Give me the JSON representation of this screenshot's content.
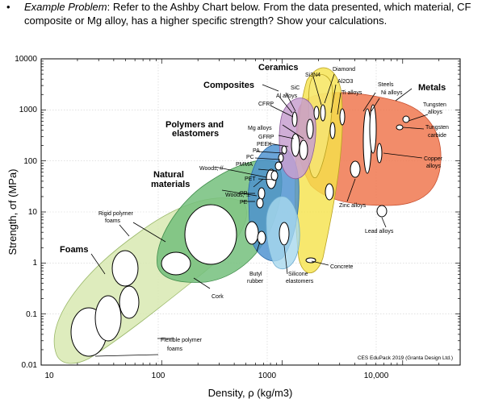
{
  "problem": {
    "bullet": "•",
    "label": "Example Problem",
    "text": ": Refer to the Ashby Chart below. From the data presented, which material, CF composite or Mg alloy, has a higher specific strength? Show your calculations."
  },
  "chart_data": {
    "type": "scatter",
    "subtype": "ashby-bubble-chart",
    "xlabel": "Density, ρ (kg/m3)",
    "ylabel": "Strength, σf (MPa)",
    "x_scale": "log",
    "y_scale": "log",
    "xlim": [
      10,
      30000
    ],
    "ylim": [
      0.01,
      10000
    ],
    "x_ticks": [
      "10",
      "100",
      "1000",
      "10,000"
    ],
    "y_ticks": [
      "10000",
      "1000",
      "100",
      "10",
      "1",
      "0.1",
      "0.01"
    ],
    "grid": true,
    "credit": "CES EduPack 2019 (Granta Design Ltd.)",
    "families": [
      {
        "name": "Foams",
        "color": "#d8e9b2"
      },
      {
        "name": "Natural materials",
        "color": "#74c07c"
      },
      {
        "name": "Polymers and elastomers",
        "color": "#4a90d0"
      },
      {
        "name": "Composites",
        "color": "#c8a0d0"
      },
      {
        "name": "Ceramics",
        "color": "#f5e24a"
      },
      {
        "name": "Metals",
        "color": "#f07850"
      }
    ],
    "group_labels": {
      "foams": "Foams",
      "natural": [
        "Natural",
        "materials"
      ],
      "polymers": [
        "Polymers and",
        "elastomers"
      ],
      "composites": "Composites",
      "ceramics": "Ceramics",
      "metals": "Metals"
    },
    "material_labels": {
      "rigid_foams": [
        "Rigid polymer",
        "foams"
      ],
      "flexible_foams": [
        "Flexible polymer",
        "foams"
      ],
      "cork": "Cork",
      "woods_par": "Woods, //",
      "woods_perp": "Woods, ⊥",
      "butyl": [
        "Butyl",
        "rubber"
      ],
      "silicone": [
        "Silicone",
        "elastomers"
      ],
      "concrete": "Concrete",
      "sic": "SiC",
      "al_alloys": "Al alloys",
      "si3n4": "Si3N4",
      "diamond": "Diamond",
      "al2o3": "Al2O3",
      "ti_alloys": "Ti alloys",
      "steels": "Steels",
      "ni_alloys": "Ni alloys",
      "tungsten_alloys": [
        "Tungsten",
        "alloys"
      ],
      "tungsten_carbide": [
        "Tungsten",
        "carbide"
      ],
      "copper_alloys": [
        "Copper",
        "alloys"
      ],
      "zinc_alloys": "Zinc alloys",
      "lead_alloys": "Lead alloys",
      "cfrp": "CFRP",
      "mg_alloys": "Mg alloys",
      "gfrp": "GFRP",
      "peek": "PEEK",
      "pa": "PA",
      "pc": "PC",
      "pmma": "PMMA",
      "pet": "PET",
      "pp": "PP",
      "pe": "PE"
    },
    "materials": [
      {
        "name": "CFRP",
        "density": 1550,
        "strength_range": [
          550,
          1050
        ]
      },
      {
        "name": "Mg alloys",
        "density": 1800,
        "strength_range": [
          70,
          400
        ]
      }
    ]
  }
}
